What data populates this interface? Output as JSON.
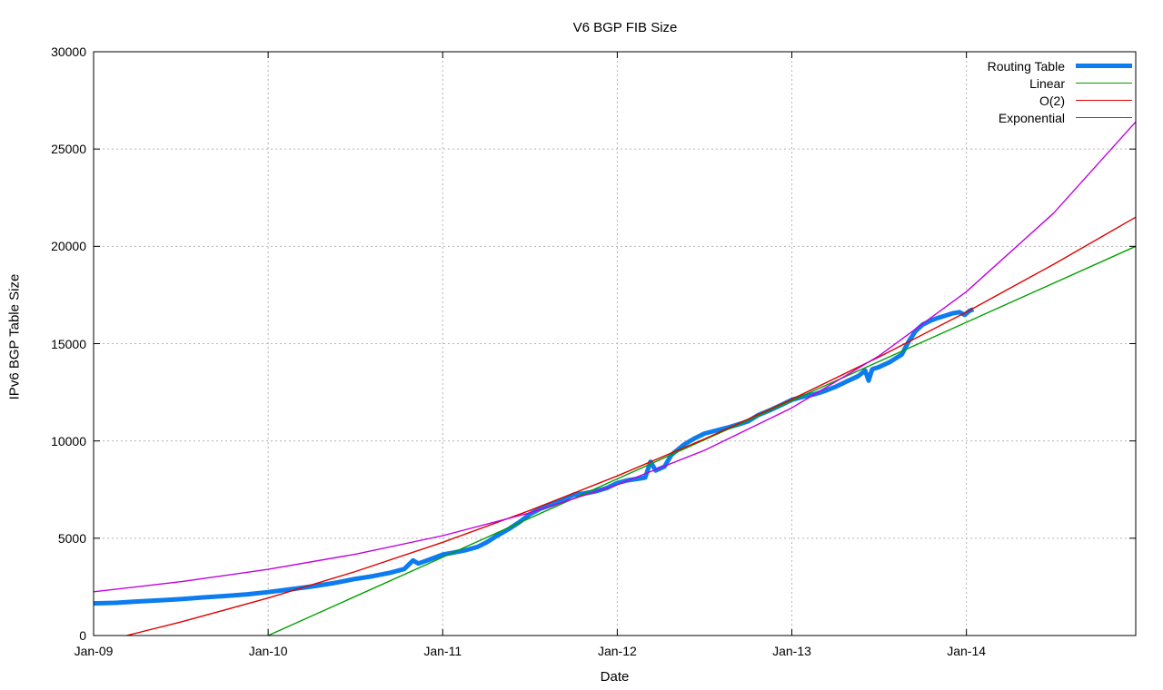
{
  "title": "V6 BGP FIB Size",
  "axes": {
    "x_label": "Date",
    "y_label": "IPv6 BGP Table Size",
    "x_tick_labels": [
      "Jan-09",
      "Jan-10",
      "Jan-11",
      "Jan-12",
      "Jan-13",
      "Jan-14"
    ],
    "x_tick_years": [
      2009,
      2010,
      2011,
      2012,
      2013,
      2014
    ],
    "y_tick_labels": [
      "0",
      "5000",
      "10000",
      "15000",
      "20000",
      "25000",
      "30000"
    ],
    "y_tick_values": [
      0,
      5000,
      10000,
      15000,
      20000,
      25000,
      30000
    ],
    "x_range": [
      2009,
      2014.97
    ],
    "y_range": [
      0,
      30000
    ],
    "grid": true
  },
  "colors": {
    "routing_table": "#0c7cee",
    "linear": "#00a000",
    "o2": "#e00000",
    "exponential": "#c000e0",
    "grid": "#b5b5b5",
    "axis": "#000000",
    "background": "#ffffff"
  },
  "chart_data": {
    "type": "line",
    "title": "V6 BGP FIB Size",
    "xlabel": "Date",
    "ylabel": "IPv6 BGP Table Size",
    "xlim": [
      2009,
      2014.97
    ],
    "ylim": [
      0,
      30000
    ],
    "grid": true,
    "legend_position": "top-right",
    "series": [
      {
        "name": "Routing Table",
        "color": "#0c7cee",
        "width": 5,
        "points": [
          [
            2009.0,
            1650
          ],
          [
            2009.12,
            1680
          ],
          [
            2009.25,
            1750
          ],
          [
            2009.4,
            1820
          ],
          [
            2009.5,
            1870
          ],
          [
            2009.63,
            1960
          ],
          [
            2009.75,
            2030
          ],
          [
            2009.88,
            2120
          ],
          [
            2010.0,
            2230
          ],
          [
            2010.13,
            2380
          ],
          [
            2010.25,
            2520
          ],
          [
            2010.38,
            2700
          ],
          [
            2010.5,
            2910
          ],
          [
            2010.6,
            3050
          ],
          [
            2010.7,
            3230
          ],
          [
            2010.78,
            3420
          ],
          [
            2010.83,
            3860
          ],
          [
            2010.86,
            3700
          ],
          [
            2010.92,
            3890
          ],
          [
            2011.0,
            4160
          ],
          [
            2011.06,
            4260
          ],
          [
            2011.13,
            4380
          ],
          [
            2011.2,
            4560
          ],
          [
            2011.25,
            4780
          ],
          [
            2011.31,
            5120
          ],
          [
            2011.38,
            5480
          ],
          [
            2011.44,
            5830
          ],
          [
            2011.5,
            6240
          ],
          [
            2011.56,
            6520
          ],
          [
            2011.63,
            6740
          ],
          [
            2011.69,
            6960
          ],
          [
            2011.75,
            7240
          ],
          [
            2011.81,
            7300
          ],
          [
            2011.88,
            7420
          ],
          [
            2011.94,
            7580
          ],
          [
            2012.0,
            7840
          ],
          [
            2012.06,
            7980
          ],
          [
            2012.13,
            8070
          ],
          [
            2012.16,
            8120
          ],
          [
            2012.19,
            8930
          ],
          [
            2012.22,
            8480
          ],
          [
            2012.27,
            8680
          ],
          [
            2012.31,
            9280
          ],
          [
            2012.38,
            9800
          ],
          [
            2012.44,
            10120
          ],
          [
            2012.5,
            10380
          ],
          [
            2012.56,
            10520
          ],
          [
            2012.63,
            10680
          ],
          [
            2012.69,
            10840
          ],
          [
            2012.75,
            11010
          ],
          [
            2012.81,
            11340
          ],
          [
            2012.88,
            11600
          ],
          [
            2012.94,
            11850
          ],
          [
            2013.0,
            12110
          ],
          [
            2013.06,
            12260
          ],
          [
            2013.13,
            12400
          ],
          [
            2013.19,
            12570
          ],
          [
            2013.25,
            12780
          ],
          [
            2013.31,
            13040
          ],
          [
            2013.38,
            13330
          ],
          [
            2013.42,
            13620
          ],
          [
            2013.44,
            13100
          ],
          [
            2013.46,
            13680
          ],
          [
            2013.5,
            13800
          ],
          [
            2013.56,
            14050
          ],
          [
            2013.63,
            14440
          ],
          [
            2013.67,
            15120
          ],
          [
            2013.71,
            15660
          ],
          [
            2013.75,
            15980
          ],
          [
            2013.79,
            16160
          ],
          [
            2013.83,
            16300
          ],
          [
            2013.88,
            16440
          ],
          [
            2013.92,
            16560
          ],
          [
            2013.96,
            16620
          ],
          [
            2013.99,
            16480
          ],
          [
            2014.02,
            16700
          ],
          [
            2014.04,
            16760
          ]
        ]
      },
      {
        "name": "Linear",
        "color": "#00a000",
        "width": 1.4,
        "points": [
          [
            2010.0,
            0
          ],
          [
            2014.97,
            20000
          ]
        ]
      },
      {
        "name": "O(2)",
        "color": "#e00000",
        "width": 1.4,
        "points": [
          [
            2009.19,
            0
          ],
          [
            2009.5,
            695
          ],
          [
            2010.0,
            1925
          ],
          [
            2010.5,
            3290
          ],
          [
            2011.0,
            4790
          ],
          [
            2011.5,
            6430
          ],
          [
            2012.0,
            8200
          ],
          [
            2012.5,
            10100
          ],
          [
            2013.0,
            12140
          ],
          [
            2013.5,
            14320
          ],
          [
            2014.0,
            16620
          ],
          [
            2014.5,
            19080
          ],
          [
            2014.97,
            21500
          ]
        ]
      },
      {
        "name": "Exponential",
        "color": "#c000e0",
        "width": 1.4,
        "points": [
          [
            2009.0,
            2250
          ],
          [
            2009.5,
            2765
          ],
          [
            2010.0,
            3400
          ],
          [
            2010.5,
            4180
          ],
          [
            2011.0,
            5130
          ],
          [
            2011.5,
            6310
          ],
          [
            2012.0,
            7750
          ],
          [
            2012.5,
            9520
          ],
          [
            2013.0,
            11700
          ],
          [
            2013.5,
            14380
          ],
          [
            2014.0,
            17670
          ],
          [
            2014.5,
            21710
          ],
          [
            2014.97,
            26400
          ]
        ]
      }
    ]
  }
}
